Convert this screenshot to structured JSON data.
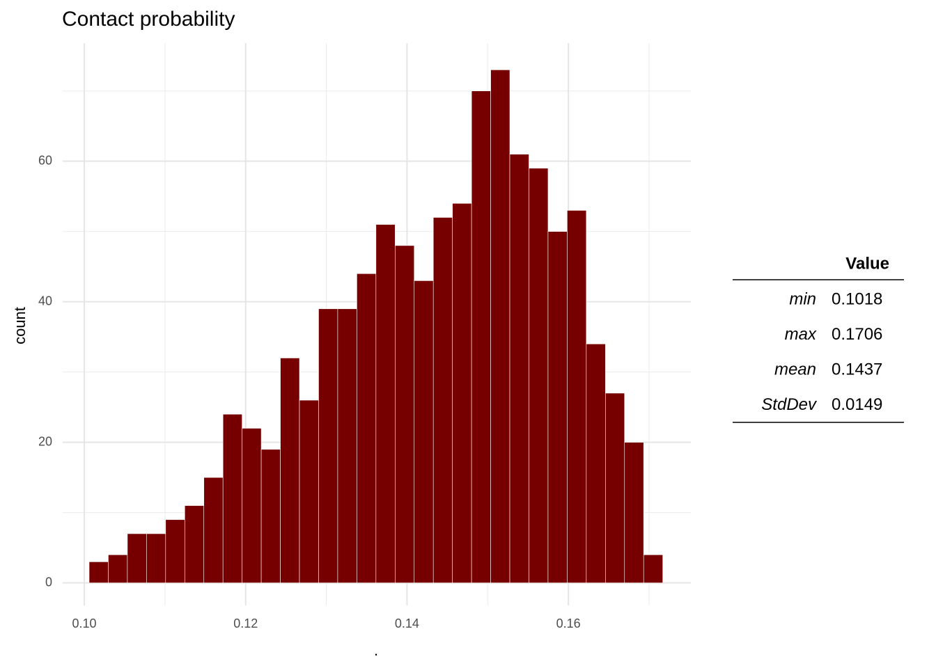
{
  "chart_data": {
    "type": "histogram",
    "title": "Contact probability",
    "x_label": ".",
    "y_label": "count",
    "bins": [
      0.1006,
      0.10297,
      0.10534,
      0.10771,
      0.11008,
      0.11245,
      0.11482,
      0.11719,
      0.11956,
      0.12193,
      0.1243,
      0.12667,
      0.12904,
      0.13141,
      0.13378,
      0.13615,
      0.13852,
      0.14089,
      0.14326,
      0.14563,
      0.148,
      0.15037,
      0.15274,
      0.15511,
      0.15748,
      0.15985,
      0.16222,
      0.16459,
      0.16696,
      0.16933,
      0.1717
    ],
    "values": [
      3,
      4,
      7,
      7,
      9,
      11,
      15,
      24,
      22,
      19,
      32,
      26,
      39,
      39,
      44,
      51,
      48,
      43,
      52,
      54,
      70,
      73,
      61,
      59,
      50,
      53,
      34,
      27,
      20,
      4
    ],
    "color": "#760000",
    "xlim": [
      0.09732,
      0.17518
    ],
    "ylim": [
      -3.2,
      76.8
    ],
    "xticks": [
      {
        "value": 0.1,
        "label": "0.10"
      },
      0.12,
      0.14,
      0.16
    ],
    "yticks": [
      0,
      20,
      40,
      60
    ],
    "x_minor_grid": [
      0.11,
      0.13,
      0.15,
      0.17
    ],
    "y_minor_grid": [
      10,
      30,
      50,
      70
    ],
    "grid": true,
    "table": {
      "header": "Value",
      "rows": [
        [
          "min",
          "0.1018"
        ],
        [
          "max",
          "0.1706"
        ],
        [
          "mean",
          "0.1437"
        ],
        [
          "StdDev",
          "0.0149"
        ]
      ]
    }
  }
}
